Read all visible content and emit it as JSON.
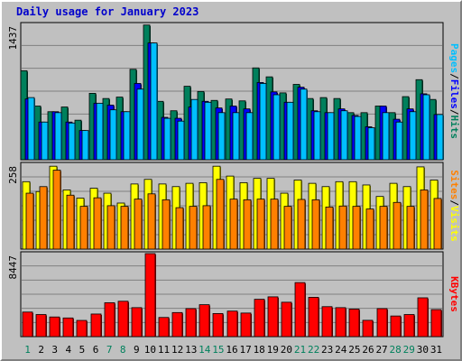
{
  "chart_data": {
    "type": "bar",
    "title": "Daily usage for January 2023",
    "categories": [
      "1",
      "2",
      "3",
      "4",
      "5",
      "6",
      "7",
      "8",
      "9",
      "10",
      "11",
      "12",
      "13",
      "14",
      "15",
      "16",
      "17",
      "18",
      "19",
      "20",
      "21",
      "22",
      "23",
      "24",
      "25",
      "26",
      "27",
      "28",
      "29",
      "30",
      "31"
    ],
    "weekend_days": [
      "1",
      "7",
      "8",
      "14",
      "15",
      "21",
      "22",
      "28",
      "29"
    ],
    "panels": [
      {
        "name": "hits-files-pages",
        "ymax_label": "1437",
        "ymax": 1437,
        "right_label": [
          {
            "text": "Pages",
            "color": "#00bfff"
          },
          {
            "text": "/",
            "color": "#000000"
          },
          {
            "text": "Files",
            "color": "#0000ff"
          },
          {
            "text": "/",
            "color": "#000000"
          },
          {
            "text": "Hits",
            "color": "#00805c"
          }
        ],
        "series": [
          {
            "name": "Hits",
            "color": "#00805c",
            "values": [
              945,
              570,
              510,
              560,
              420,
              705,
              650,
              665,
              960,
              1430,
              620,
              520,
              780,
              725,
              630,
              645,
              625,
              975,
              880,
              710,
              800,
              650,
              660,
              650,
              500,
              500,
              570,
              500,
              670,
              850,
              640
            ]
          },
          {
            "name": "Files",
            "color": "#0000ff",
            "values": [
              645,
              400,
              510,
              400,
              310,
              600,
              580,
              510,
              810,
              1240,
              450,
              440,
              560,
              620,
              550,
              570,
              540,
              820,
              720,
              610,
              770,
              520,
              500,
              540,
              470,
              350,
              570,
              430,
              540,
              700,
              480
            ]
          },
          {
            "name": "Pages",
            "color": "#00bfff",
            "values": [
              660,
              400,
              500,
              390,
              310,
              600,
              530,
              510,
              750,
              1240,
              440,
              410,
              640,
              610,
              500,
              500,
              500,
              810,
              690,
              610,
              750,
              510,
              500,
              520,
              460,
              340,
              500,
              400,
              510,
              690,
              480
            ]
          }
        ]
      },
      {
        "name": "visits-sites",
        "ymax_label": "258",
        "ymax": 258,
        "right_label": [
          {
            "text": "Sites",
            "color": "#ff8000"
          },
          {
            "text": "/",
            "color": "#000000"
          },
          {
            "text": "Visits",
            "color": "#ffff00"
          }
        ],
        "series": [
          {
            "name": "Visits",
            "color": "#ffff00",
            "values": [
              205,
              175,
              252,
              180,
              155,
              185,
              170,
              140,
              198,
              212,
              198,
              190,
              200,
              202,
              252,
              222,
              202,
              215,
              215,
              170,
              210,
              200,
              190,
              205,
              205,
              195,
              160,
              200,
              190,
              250,
              210
            ]
          },
          {
            "name": "Sites",
            "color": "#ff8000",
            "values": [
              170,
              190,
              240,
              164,
              130,
              156,
              132,
              130,
              152,
              168,
              150,
              126,
              130,
              132,
              212,
              152,
              150,
              152,
              152,
              130,
              151,
              150,
              128,
              131,
              130,
              122,
              130,
              142,
              130,
              180,
              154
            ]
          }
        ]
      },
      {
        "name": "kbytes",
        "ymax_label": "8447",
        "ymax": 8447,
        "right_label": [
          {
            "text": "KBytes",
            "color": "#ff0000"
          }
        ],
        "series": [
          {
            "name": "KBytes",
            "color": "#ff0000",
            "values": [
              2500,
              2250,
              2000,
              1900,
              1650,
              2300,
              3450,
              3600,
              2950,
              8447,
              1950,
              2450,
              2850,
              3250,
              2350,
              2600,
              2400,
              3800,
              4050,
              3500,
              5500,
              4000,
              3050,
              2950,
              2800,
              1660,
              2850,
              2100,
              2250,
              3950,
              2750
            ]
          }
        ]
      }
    ]
  }
}
